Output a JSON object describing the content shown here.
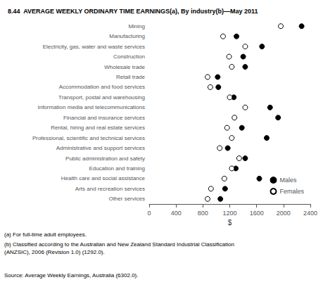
{
  "chart_data": {
    "type": "scatter",
    "orientation": "horizontal",
    "title": "8.44  AVERAGE WEEKLY ORDINARY TIME EARNINGS(a), By industry(b)—May 2011",
    "categories": [
      "Mining",
      "Manufacturing",
      "Electricity, gas, water and waste services",
      "Construction",
      "Wholesale trade",
      "Retail trade",
      "Accommodation and food services",
      "Transport, postal and warehousing",
      "Information media and telecommunications",
      "Financial and insurance services",
      "Rental, hiring and real estate services",
      "Professional, scientific and technical services",
      "Administrative and support services",
      "Public administration and safety",
      "Education and training",
      "Health care and social assistance",
      "Arts and recreation services",
      "Other services"
    ],
    "series": [
      {
        "name": "Males",
        "color": "#000000",
        "marker": "circle",
        "values": [
          2270,
          1300,
          1680,
          1400,
          1430,
          1020,
          1030,
          1260,
          1800,
          1920,
          1380,
          1750,
          1170,
          1430,
          1290,
          1640,
          1130,
          1060
        ]
      },
      {
        "name": "Females",
        "color": "#ffffff",
        "marker": "circle",
        "values": [
          1960,
          1100,
          1430,
          1190,
          1230,
          870,
          910,
          1200,
          1430,
          1270,
          1160,
          1230,
          1050,
          1340,
          1230,
          1120,
          920,
          870
        ]
      }
    ],
    "xlabel": "$",
    "xlim": [
      0,
      2400
    ],
    "xticks": [
      0,
      400,
      800,
      1200,
      1600,
      2000,
      2400
    ],
    "grid": false,
    "legend": "lower right",
    "annotations": [
      "(a) For full-time adult employees.",
      "(b) Classified according to the Australian and New Zealand Standard Industrial Classification\n(ANZSIC), 2006 (Revision 1.0) (1292.0).",
      "Source: Average Weekly Earnings, Australia (6302.0)."
    ]
  }
}
